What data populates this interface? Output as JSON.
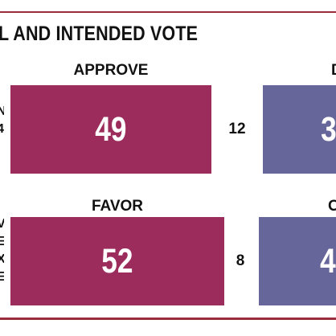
{
  "title": "L AND INTENDED VOTE",
  "colors": {
    "rule": "#9b2c3c",
    "favorable": "#9b2c5c",
    "unfavorable": "#66669a"
  },
  "rows": [
    {
      "label_lines": [
        "N",
        "4"
      ],
      "left_header": "APPROVE",
      "right_header": "D",
      "left_value": "49",
      "middle_value": "12",
      "right_value": "3"
    },
    {
      "label_lines": [
        "V",
        "E",
        "X",
        "E"
      ],
      "left_header": "FAVOR",
      "right_header": "O",
      "left_value": "52",
      "middle_value": "8",
      "right_value": "4"
    }
  ],
  "chart_data": {
    "type": "bar",
    "title": "L AND INTENDED VOTE",
    "categories": [
      "APPROVE",
      "FAVOR"
    ],
    "series": [
      {
        "name": "APPROVE / FAVOR",
        "values": [
          49,
          52
        ]
      },
      {
        "name": "",
        "values": [
          12,
          8
        ]
      },
      {
        "name": "",
        "values": [
          3,
          4
        ]
      }
    ]
  }
}
